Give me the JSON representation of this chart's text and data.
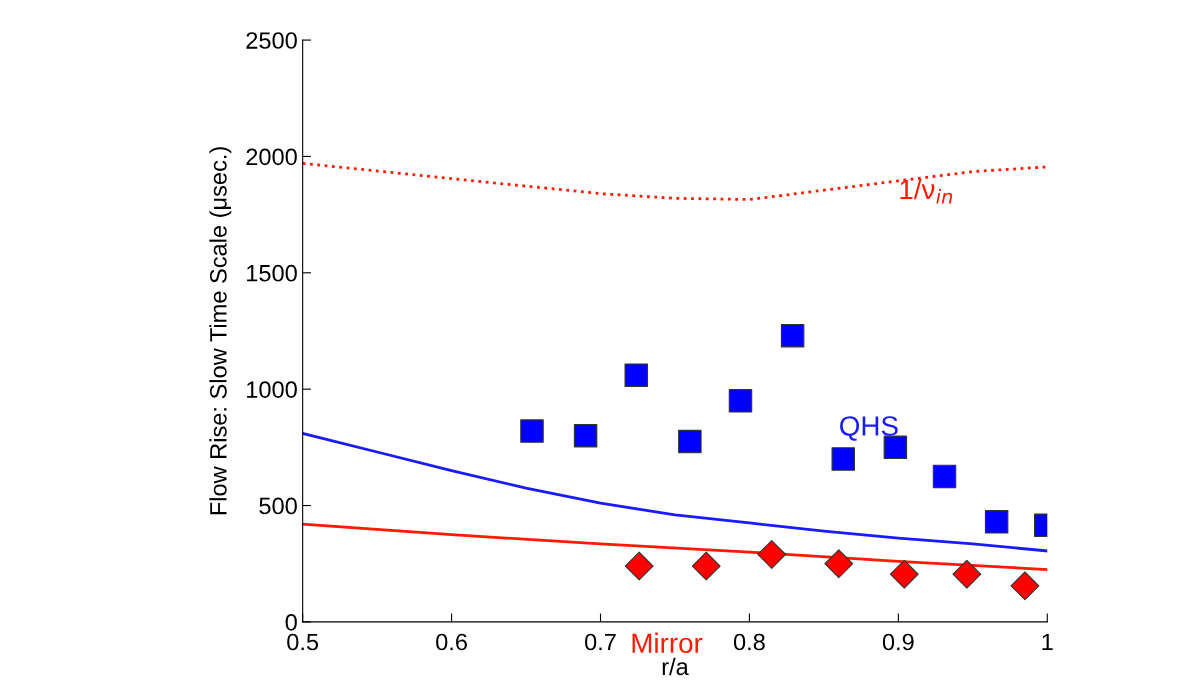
{
  "chart_data": {
    "type": "line",
    "xlabel": "r/a",
    "ylabel": "Flow Rise: Slow Time Scale (μsec.)",
    "xlim": [
      0.5,
      1
    ],
    "ylim": [
      0,
      2500
    ],
    "xticks": [
      0.5,
      0.6,
      0.7,
      0.8,
      0.9,
      {
        "value": 1,
        "label": "1"
      }
    ],
    "yticks": [
      0,
      500,
      1000,
      1500,
      2000,
      2500
    ],
    "grid": false,
    "series": [
      {
        "type": "scatter",
        "color": "#0000ff",
        "marker": "square",
        "x": [
          0.654,
          0.69,
          0.724,
          0.76,
          0.794,
          0.829,
          0.863,
          0.898,
          0.931,
          0.966,
          0.999
        ],
        "values": [
          820,
          800,
          1060,
          775,
          950,
          1230,
          700,
          750,
          625,
          430,
          415
        ]
      },
      {
        "type": "scatter",
        "color": "#ff0000",
        "marker": "diamond",
        "x": [
          0.726,
          0.771,
          0.815,
          0.86,
          0.904,
          0.946,
          0.985
        ],
        "values": [
          240,
          240,
          290,
          250,
          205,
          205,
          155
        ]
      },
      {
        "name": "QHS",
        "color": "#1a1aff",
        "line_style": "solid",
        "x": [
          0.5,
          0.55,
          0.6,
          0.65,
          0.7,
          0.75,
          0.8,
          0.85,
          0.9,
          0.95,
          1.0
        ],
        "values": [
          810,
          730,
          650,
          575,
          510,
          460,
          425,
          390,
          360,
          335,
          305
        ]
      },
      {
        "name": "Mirror",
        "color": "#ff1a00",
        "line_style": "solid",
        "x": [
          0.5,
          0.6,
          0.7,
          0.8,
          0.9,
          1.0
        ],
        "values": [
          420,
          375,
          335,
          300,
          260,
          225
        ]
      },
      {
        "name": "1/ν$_{in}$",
        "color": "#ff1a00",
        "line_style": "dotted",
        "x": [
          0.5,
          0.6,
          0.7,
          0.75,
          0.8,
          0.85,
          0.9,
          0.95,
          1.0
        ],
        "values": [
          1970,
          1905,
          1840,
          1820,
          1815,
          1855,
          1895,
          1935,
          1955
        ]
      }
    ]
  }
}
